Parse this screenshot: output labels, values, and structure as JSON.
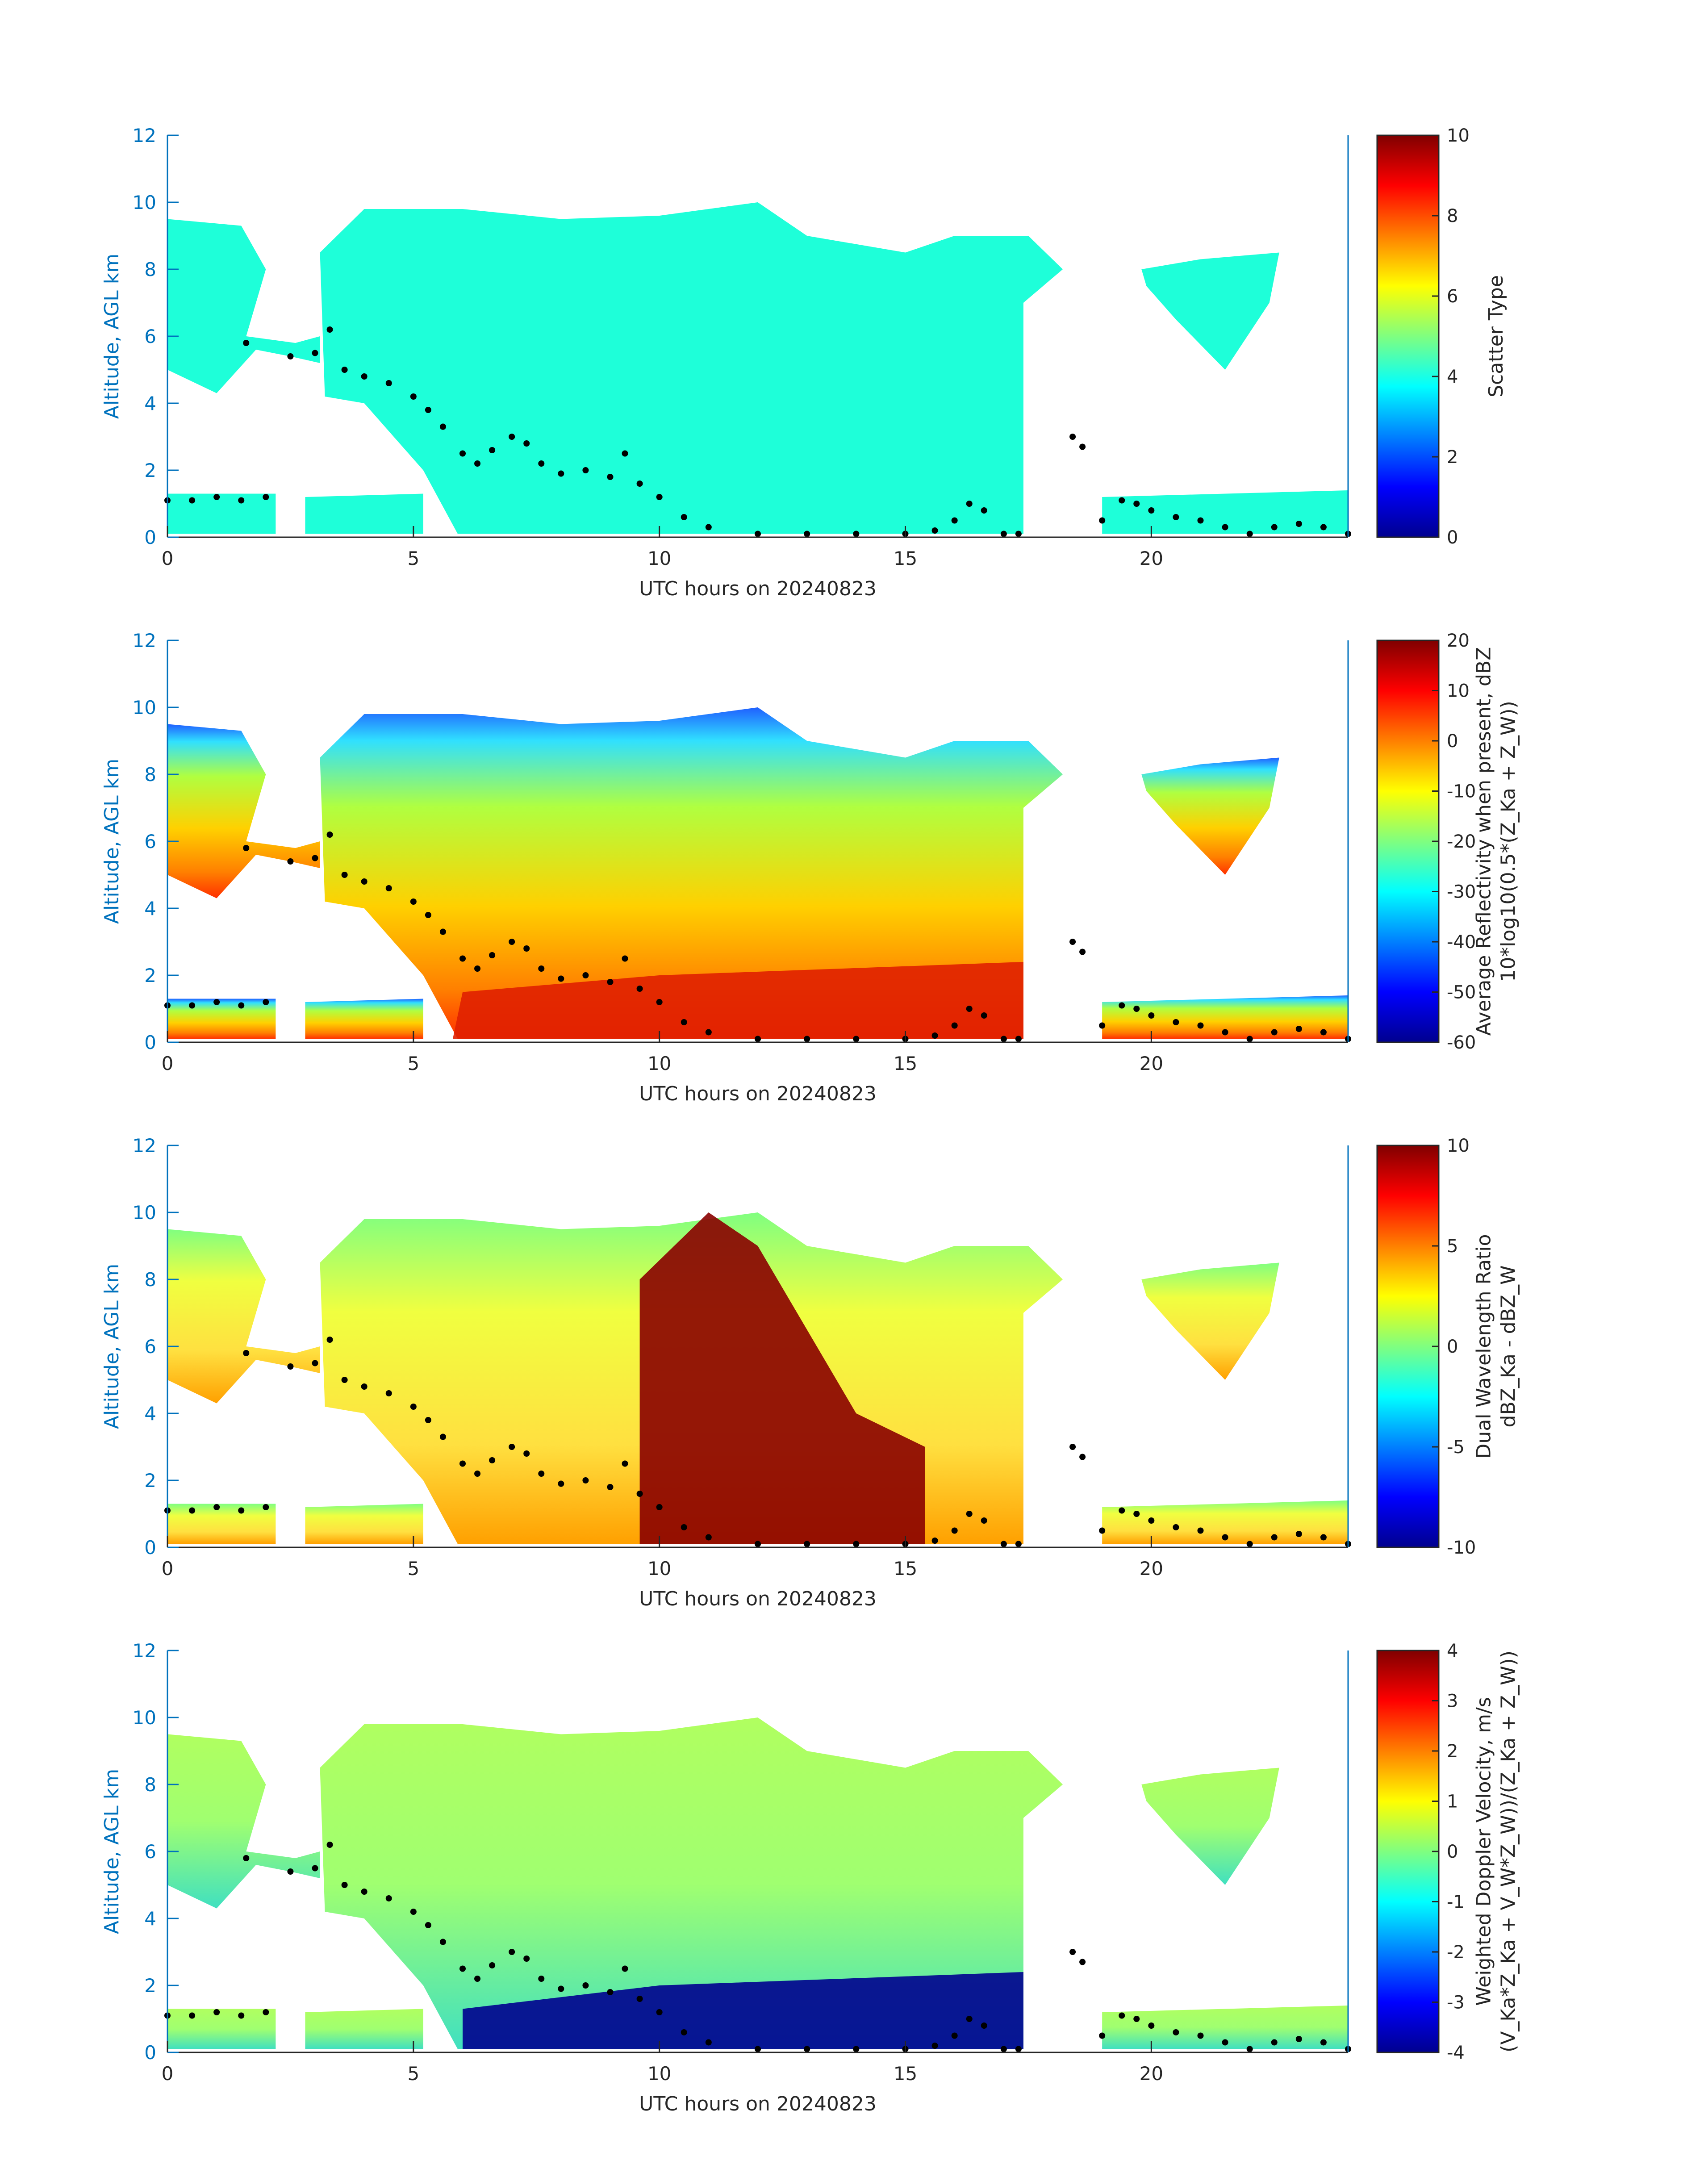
{
  "chart_data": [
    {
      "type": "heatmap",
      "xlabel": "UTC hours on 20240823",
      "ylabel": "Altitude, AGL km",
      "xlim": [
        0,
        24
      ],
      "ylim": [
        0,
        12
      ],
      "xticks": [
        "0",
        "5",
        "10",
        "15",
        "20"
      ],
      "yticks": [
        "0",
        "2",
        "4",
        "6",
        "8",
        "10",
        "12"
      ],
      "colormap": "jet",
      "colorbar": {
        "label": [
          "Scatter Type"
        ],
        "range": [
          0,
          10
        ],
        "ticks": [
          "0",
          "2",
          "4",
          "6",
          "8",
          "10"
        ]
      },
      "dominant_value": 4.5
    },
    {
      "type": "heatmap",
      "xlabel": "UTC hours on 20240823",
      "ylabel": "Altitude, AGL km",
      "xlim": [
        0,
        24
      ],
      "ylim": [
        0,
        12
      ],
      "xticks": [
        "0",
        "5",
        "10",
        "15",
        "20"
      ],
      "yticks": [
        "0",
        "2",
        "4",
        "6",
        "8",
        "10",
        "12"
      ],
      "colormap": "jet",
      "colorbar": {
        "label": [
          "Average Reflectivity when present, dBZ",
          "10*log10(0.5*(Z_Ka + Z_W))"
        ],
        "range": [
          -60,
          20
        ],
        "ticks": [
          "-60",
          "-50",
          "-40",
          "-30",
          "-20",
          "-10",
          "0",
          "10",
          "20"
        ]
      }
    },
    {
      "type": "heatmap",
      "xlabel": "UTC hours on 20240823",
      "ylabel": "Altitude, AGL km",
      "xlim": [
        0,
        24
      ],
      "ylim": [
        0,
        12
      ],
      "xticks": [
        "0",
        "5",
        "10",
        "15",
        "20"
      ],
      "yticks": [
        "0",
        "2",
        "4",
        "6",
        "8",
        "10",
        "12"
      ],
      "colormap": "jet",
      "colorbar": {
        "label": [
          "Dual Wavelength Ratio",
          "dBZ_Ka - dBZ_W"
        ],
        "range": [
          -10,
          10
        ],
        "ticks": [
          "-10",
          "-5",
          "0",
          "5",
          "10"
        ]
      }
    },
    {
      "type": "heatmap",
      "xlabel": "UTC hours on 20240823",
      "ylabel": "Altitude, AGL km",
      "xlim": [
        0,
        24
      ],
      "ylim": [
        0,
        12
      ],
      "xticks": [
        "0",
        "5",
        "10",
        "15",
        "20"
      ],
      "yticks": [
        "0",
        "2",
        "4",
        "6",
        "8",
        "10",
        "12"
      ],
      "colormap": "jet",
      "colorbar": {
        "label": [
          "Weighted Doppler Velocity, m/s",
          "(V_Ka*Z_Ka + V_W*Z_W))/(Z_Ka + Z_W))"
        ],
        "range": [
          -4,
          4
        ],
        "ticks": [
          "-4",
          "-3",
          "-2",
          "-1",
          "0",
          "1",
          "2",
          "3",
          "4"
        ]
      }
    }
  ],
  "overlay_points": {
    "x": [
      0,
      0.5,
      1,
      1.5,
      2,
      1.6,
      2.5,
      3,
      3.3,
      3.6,
      4,
      4.5,
      5,
      5.3,
      5.6,
      6,
      6.3,
      6.6,
      7,
      7.3,
      7.6,
      8,
      8.5,
      9,
      9.3,
      9.6,
      10,
      10.5,
      11,
      12,
      13,
      14,
      15,
      15.6,
      16,
      16.3,
      16.6,
      17,
      17.3,
      18.4,
      18.6,
      19,
      19.4,
      19.7,
      20,
      20.5,
      21,
      21.5,
      22,
      22.5,
      23,
      23.5,
      24
    ],
    "y": [
      1.1,
      1.1,
      1.2,
      1.1,
      1.2,
      5.8,
      5.4,
      5.5,
      6.2,
      5,
      4.8,
      4.6,
      4.2,
      3.8,
      3.3,
      2.5,
      2.2,
      2.6,
      3,
      2.8,
      2.2,
      1.9,
      2,
      1.8,
      2.5,
      1.6,
      1.2,
      0.6,
      0.3,
      0.1,
      0.1,
      0.1,
      0.1,
      0.2,
      0.5,
      1,
      0.8,
      0.1,
      0.1,
      3,
      2.7,
      0.5,
      1.1,
      1,
      0.8,
      0.6,
      0.5,
      0.3,
      0.1,
      0.3,
      0.4,
      0.3,
      0.1
    ]
  }
}
